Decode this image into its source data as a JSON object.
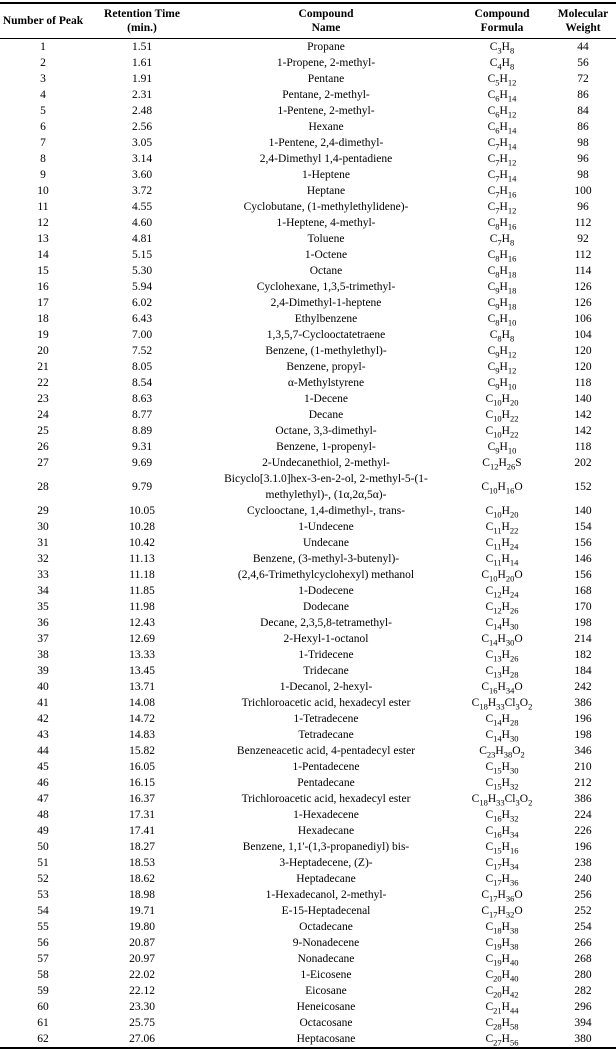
{
  "colors": {
    "text": "#000000",
    "background": "#ffffff",
    "border": "#000000"
  },
  "table": {
    "headers": [
      {
        "line1": "Number of Peak",
        "line2": ""
      },
      {
        "line1": "Retention Time",
        "line2": "(min.)"
      },
      {
        "line1": "Compound",
        "line2": "Name"
      },
      {
        "line1": "Compound",
        "line2": "Formula"
      },
      {
        "line1": "Molecular",
        "line2": "Weight"
      }
    ],
    "columns_order": [
      "peak_number",
      "retention_time_min",
      "compound_name",
      "compound_formula",
      "molecular_weight"
    ],
    "rows": [
      [
        1,
        "1.51",
        "Propane",
        "C3H8",
        44
      ],
      [
        2,
        "1.61",
        "1-Propene, 2-methyl-",
        "C4H8",
        56
      ],
      [
        3,
        "1.91",
        "Pentane",
        "C5H12",
        72
      ],
      [
        4,
        "2.31",
        "Pentane, 2-methyl-",
        "C6H14",
        86
      ],
      [
        5,
        "2.48",
        "1-Pentene, 2-methyl-",
        "C6H12",
        84
      ],
      [
        6,
        "2.56",
        "Hexane",
        "C6H14",
        86
      ],
      [
        7,
        "3.05",
        "1-Pentene, 2,4-dimethyl-",
        "C7H14",
        98
      ],
      [
        8,
        "3.14",
        "2,4-Dimethyl 1,4-pentadiene",
        "C7H12",
        96
      ],
      [
        9,
        "3.60",
        "1-Heptene",
        "C7H14",
        98
      ],
      [
        10,
        "3.72",
        "Heptane",
        "C7H16",
        100
      ],
      [
        11,
        "4.55",
        "Cyclobutane, (1-methylethylidene)-",
        "C7H12",
        96
      ],
      [
        12,
        "4.60",
        "1-Heptene, 4-methyl-",
        "C8H16",
        112
      ],
      [
        13,
        "4.81",
        "Toluene",
        "C7H8",
        92
      ],
      [
        14,
        "5.15",
        "1-Octene",
        "C8H16",
        112
      ],
      [
        15,
        "5.30",
        "Octane",
        "C8H18",
        114
      ],
      [
        16,
        "5.94",
        "Cyclohexane, 1,3,5-trimethyl-",
        "C9H18",
        126
      ],
      [
        17,
        "6.02",
        "2,4-Dimethyl-1-heptene",
        "C9H18",
        126
      ],
      [
        18,
        "6.43",
        "Ethylbenzene",
        "C8H10",
        106
      ],
      [
        19,
        "7.00",
        "1,3,5,7-Cyclooctatetraene",
        "C8H8",
        104
      ],
      [
        20,
        "7.52",
        "Benzene, (1-methylethyl)-",
        "C9H12",
        120
      ],
      [
        21,
        "8.05",
        "Benzene, propyl-",
        "C9H12",
        120
      ],
      [
        22,
        "8.54",
        "α-Methylstyrene",
        "C9H10",
        118
      ],
      [
        23,
        "8.63",
        "1-Decene",
        "C10H20",
        140
      ],
      [
        24,
        "8.77",
        "Decane",
        "C10H22",
        142
      ],
      [
        25,
        "8.89",
        "Octane, 3,3-dimethyl-",
        "C10H22",
        142
      ],
      [
        26,
        "9.31",
        "Benzene, 1-propenyl-",
        "C9H10",
        118
      ],
      [
        27,
        "9.69",
        "2-Undecanethiol, 2-methyl-",
        "C12H26S",
        202
      ],
      [
        28,
        "9.79",
        "Bicyclo[3.1.0]hex-3-en-2-ol, 2-methyl-5-(1-methylethyl)-, (1α,2α,5α)-",
        "C10H16O",
        152
      ],
      [
        29,
        "10.05",
        "Cyclooctane, 1,4-dimethyl-, trans-",
        "C10H20",
        140
      ],
      [
        30,
        "10.28",
        "1-Undecene",
        "C11H22",
        154
      ],
      [
        31,
        "10.42",
        "Undecane",
        "C11H24",
        156
      ],
      [
        32,
        "11.13",
        "Benzene, (3-methyl-3-butenyl)-",
        "C11H14",
        146
      ],
      [
        33,
        "11.18",
        "(2,4,6-Trimethylcyclohexyl) methanol",
        "C10H20O",
        156
      ],
      [
        34,
        "11.85",
        "1-Dodecene",
        "C12H24",
        168
      ],
      [
        35,
        "11.98",
        "Dodecane",
        "C12H26",
        170
      ],
      [
        36,
        "12.43",
        "Decane, 2,3,5,8-tetramethyl-",
        "C14H30",
        198
      ],
      [
        37,
        "12.69",
        "2-Hexyl-1-octanol",
        "C14H30O",
        214
      ],
      [
        38,
        "13.33",
        "1-Tridecene",
        "C13H26",
        182
      ],
      [
        39,
        "13.45",
        "Tridecane",
        "C13H28",
        184
      ],
      [
        40,
        "13.71",
        "1-Decanol, 2-hexyl-",
        "C16H34O",
        242
      ],
      [
        41,
        "14.08",
        "Trichloroacetic acid, hexadecyl ester",
        "C18H33Cl3O2",
        386
      ],
      [
        42,
        "14.72",
        "1-Tetradecene",
        "C14H28",
        196
      ],
      [
        43,
        "14.83",
        "Tetradecane",
        "C14H30",
        198
      ],
      [
        44,
        "15.82",
        "Benzeneacetic acid, 4-pentadecyl ester",
        "C23H38O2",
        346
      ],
      [
        45,
        "16.05",
        "1-Pentadecene",
        "C15H30",
        210
      ],
      [
        46,
        "16.15",
        "Pentadecane",
        "C15H32",
        212
      ],
      [
        47,
        "16.37",
        "Trichloroacetic acid, hexadecyl ester",
        "C18H33Cl3O2",
        386
      ],
      [
        48,
        "17.31",
        "1-Hexadecene",
        "C16H32",
        224
      ],
      [
        49,
        "17.41",
        "Hexadecane",
        "C16H34",
        226
      ],
      [
        50,
        "18.27",
        "Benzene, 1,1'-(1,3-propanediyl) bis-",
        "C15H16",
        196
      ],
      [
        51,
        "18.53",
        "3-Heptadecene, (Z)-",
        "C17H34",
        238
      ],
      [
        52,
        "18.62",
        "Heptadecane",
        "C17H36",
        240
      ],
      [
        53,
        "18.98",
        "1-Hexadecanol, 2-methyl-",
        "C17H36O",
        256
      ],
      [
        54,
        "19.71",
        "E-15-Heptadecenal",
        "C17H32O",
        252
      ],
      [
        55,
        "19.80",
        "Octadecane",
        "C18H38",
        254
      ],
      [
        56,
        "20.87",
        "9-Nonadecene",
        "C19H38",
        266
      ],
      [
        57,
        "20.97",
        "Nonadecane",
        "C19H40",
        268
      ],
      [
        58,
        "22.02",
        "1-Eicosene",
        "C20H40",
        280
      ],
      [
        59,
        "22.12",
        "Eicosane",
        "C20H42",
        282
      ],
      [
        60,
        "23.30",
        "Heneicosane",
        "C21H44",
        296
      ],
      [
        61,
        "25.75",
        "Octacosane",
        "C28H58",
        394
      ],
      [
        62,
        "27.06",
        "Heptacosane",
        "C27H56",
        380
      ]
    ]
  }
}
